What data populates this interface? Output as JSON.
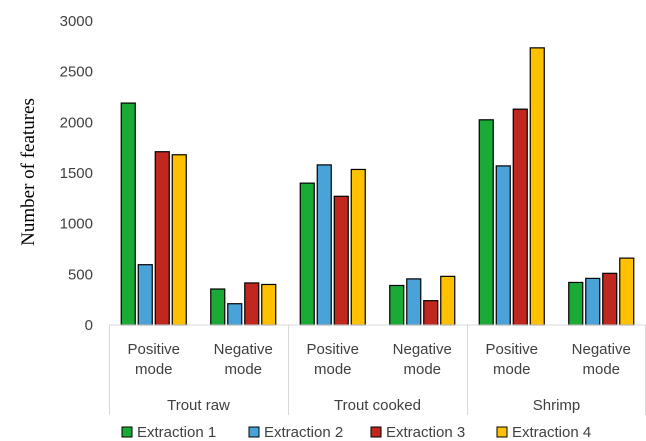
{
  "chart_data": {
    "type": "bar",
    "ylabel": "Number of features",
    "xlabel": "",
    "ylim": [
      0,
      3000
    ],
    "yticks": [
      0,
      500,
      1000,
      1500,
      2000,
      2500,
      3000
    ],
    "grid": false,
    "legend_position": "bottom",
    "groups": [
      {
        "label": "Trout raw",
        "categories": [
          "Positive\nmode",
          "Negative\nmode"
        ]
      },
      {
        "label": "Trout cooked",
        "categories": [
          "Positive\nmode",
          "Negative\nmode"
        ]
      },
      {
        "label": "Shrimp",
        "categories": [
          "Positive\nmode",
          "Negative\nmode"
        ]
      }
    ],
    "series": [
      {
        "name": "Extraction 1",
        "color": "#1aaa35",
        "values": [
          2190,
          355,
          1400,
          390,
          2025,
          420
        ]
      },
      {
        "name": "Extraction 2",
        "color": "#4aa3d8",
        "values": [
          595,
          210,
          1580,
          455,
          1570,
          460
        ]
      },
      {
        "name": "Extraction 3",
        "color": "#c0281f",
        "values": [
          1710,
          415,
          1270,
          240,
          2130,
          510
        ]
      },
      {
        "name": "Extraction 4",
        "color": "#ffc000",
        "values": [
          1680,
          400,
          1535,
          480,
          2735,
          660
        ]
      }
    ]
  }
}
